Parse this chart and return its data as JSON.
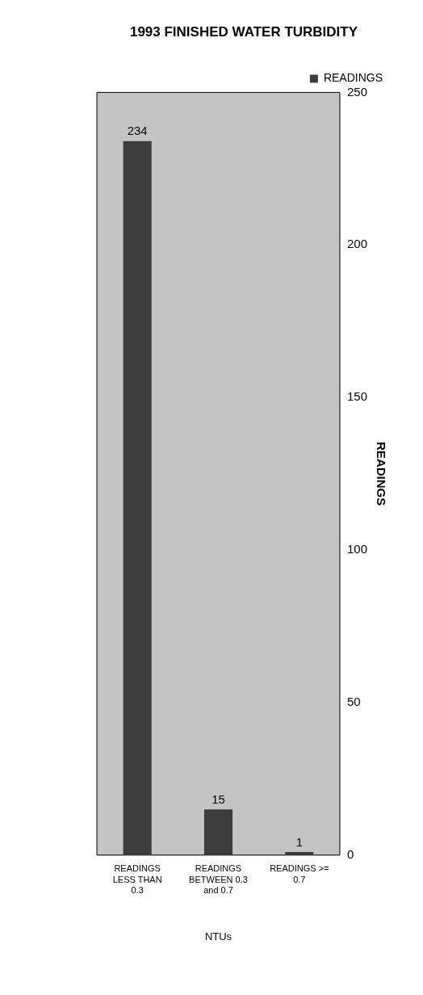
{
  "chart_data": {
    "type": "bar",
    "title": "1993 FINISHED WATER TURBIDITY",
    "xlabel": "NTUs",
    "ylabel": "READINGS",
    "categories": [
      "READINGS LESS THAN 0.3",
      "READINGS BETWEEN 0.3 and 0.7",
      "READINGS >= 0.7"
    ],
    "series": [
      {
        "name": "READINGS",
        "color": "#3c3c3c",
        "values": [
          234,
          15,
          1
        ]
      }
    ],
    "ylim": [
      0,
      250
    ],
    "yticks": [
      0,
      50,
      100,
      150,
      200,
      250
    ],
    "grid": false,
    "legend": "top right",
    "data_labels": true
  }
}
